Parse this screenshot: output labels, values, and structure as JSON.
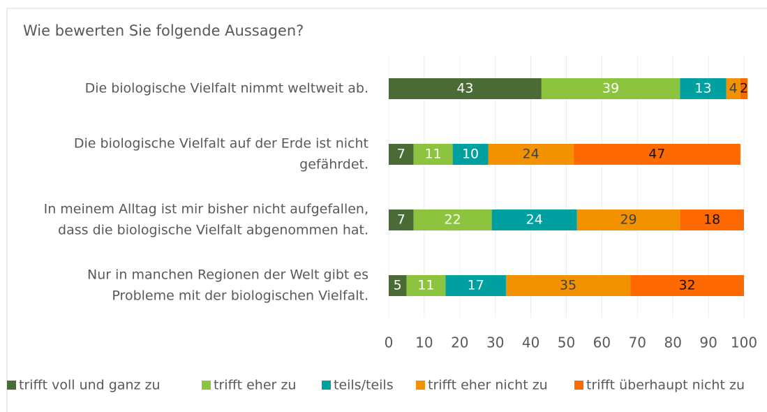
{
  "chart_data": {
    "type": "stacked_bar_horizontal",
    "title": "Wie bewerten Sie folgende Aussagen?",
    "categories": [
      [
        "Die biologische Vielfalt nimmt weltweit ab."
      ],
      [
        "Die biologische Vielfalt auf der Erde ist nicht",
        "gefährdet."
      ],
      [
        "In meinem Alltag ist mir bisher nicht aufgefallen,",
        "dass die biologische Vielfalt abgenommen hat."
      ],
      [
        "Nur in manchen Regionen der Welt gibt es",
        "Probleme mit der biologischen Vielfalt."
      ]
    ],
    "series": [
      {
        "name": "trifft voll und ganz zu",
        "color": "#4a6b35",
        "values": [
          43,
          7,
          7,
          5
        ]
      },
      {
        "name": "trifft eher zu",
        "color": "#8dc43f",
        "values": [
          39,
          11,
          22,
          11
        ]
      },
      {
        "name": "teils/teils",
        "color": "#00a0a0",
        "values": [
          13,
          10,
          24,
          17
        ]
      },
      {
        "name": "trifft eher nicht zu",
        "color": "#f39200",
        "values": [
          4,
          24,
          29,
          35
        ]
      },
      {
        "name": "trifft überhaupt nicht zu",
        "color": "#ff6a00",
        "values": [
          2,
          47,
          18,
          32
        ]
      }
    ],
    "xlim": [
      0,
      100
    ],
    "xticks": [
      0,
      10,
      20,
      30,
      40,
      50,
      60,
      70,
      80,
      90,
      100
    ],
    "grid": true,
    "legend": "bottom"
  }
}
